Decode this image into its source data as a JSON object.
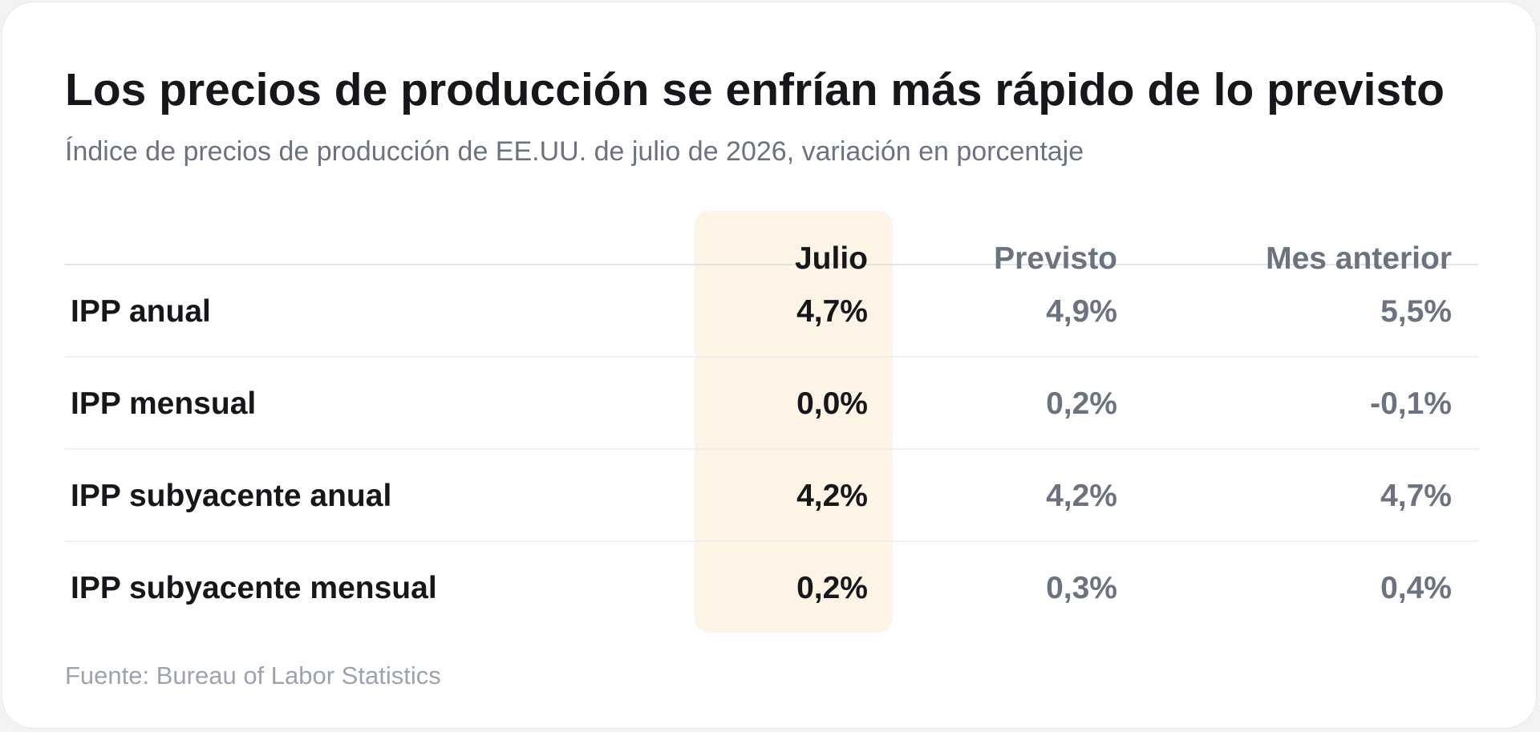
{
  "title": "Los precios de producción se enfrían más rápido de lo previsto",
  "subtitle": "Índice de precios de producción de EE.UU. de julio de 2026, variación en porcentaje",
  "source": "Fuente: Bureau of Labor Statistics",
  "colors": {
    "accent": "#f39a1a",
    "highlight_background": "#fdf4e6",
    "muted_text": "#6b7280",
    "primary_text": "#15171a"
  },
  "chart_data": {
    "type": "table",
    "title": "Los precios de producción se enfrían más rápido de lo previsto",
    "subtitle": "Índice de precios de producción de EE.UU. de julio de 2026, variación en porcentaje",
    "columns": [
      "Julio",
      "Previsto",
      "Mes anterior"
    ],
    "highlighted_column": "Julio",
    "rows": [
      {
        "label": "IPP anual",
        "values": [
          "4,7%",
          "4,9%",
          "5,5%"
        ]
      },
      {
        "label": "IPP mensual",
        "values": [
          "0,0%",
          "0,2%",
          "-0,1%"
        ]
      },
      {
        "label": "IPP subyacente anual",
        "values": [
          "4,2%",
          "4,2%",
          "4,7%"
        ]
      },
      {
        "label": "IPP subyacente mensual",
        "values": [
          "0,2%",
          "0,3%",
          "0,4%"
        ]
      }
    ],
    "source": "Fuente: Bureau of Labor Statistics"
  }
}
